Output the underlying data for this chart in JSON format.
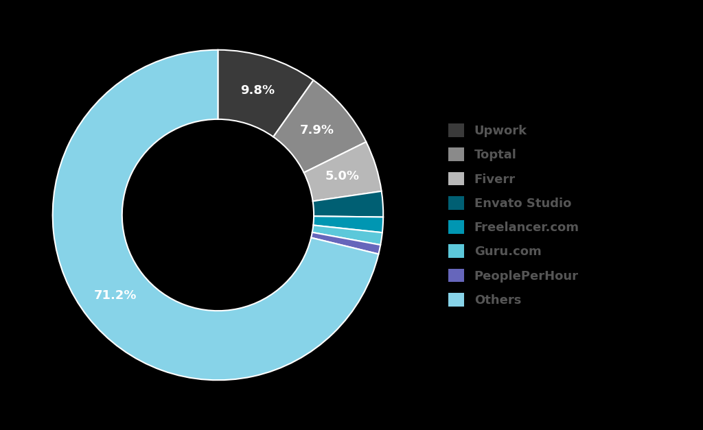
{
  "labels": [
    "Upwork",
    "Toptal",
    "Fiverr",
    "Envato Studio",
    "Freelancer.com",
    "Guru.com",
    "PeoplePerHour",
    "Others"
  ],
  "values": [
    9.8,
    7.9,
    5.0,
    2.5,
    1.5,
    1.2,
    0.9,
    71.2
  ],
  "colors": [
    "#3a3a3a",
    "#8a8a8a",
    "#b8b8b8",
    "#005f73",
    "#0096b2",
    "#5cc8da",
    "#6666bb",
    "#87d3e8"
  ],
  "label_texts": [
    "9.8%",
    "7.9%",
    "5.0%",
    "",
    "",
    "",
    "",
    "71.2%"
  ],
  "background_color": "#000000",
  "text_color": "#555555",
  "font_size_legend": 13,
  "font_size_label": 13,
  "wedge_linewidth": 1.5,
  "wedge_linecolor": "#ffffff"
}
